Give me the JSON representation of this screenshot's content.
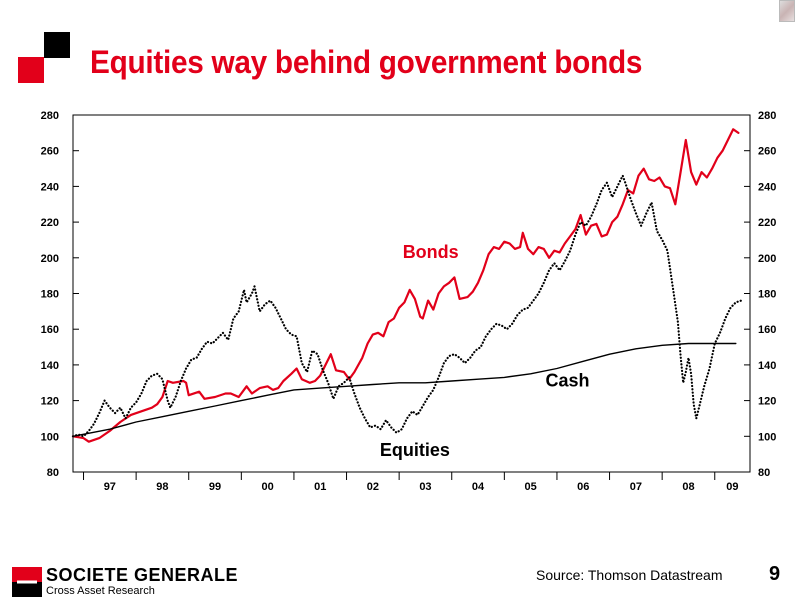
{
  "slide": {
    "title": "Equities way behind government bonds",
    "source": "Source: Thomson Datastream",
    "page_number": "9",
    "brand": {
      "name": "SOCIETE GENERALE",
      "subtitle": "Cross Asset Research"
    }
  },
  "colors": {
    "accent": "#e2001a",
    "bonds": "#e2001a",
    "equities": "#000000",
    "cash": "#000000"
  },
  "chart_data": {
    "type": "line",
    "ylim": [
      80,
      280
    ],
    "y_ticks": [
      80,
      100,
      120,
      140,
      160,
      180,
      200,
      220,
      240,
      260,
      280
    ],
    "y_tick_labels": [
      "80",
      "100",
      "120",
      "140",
      "160",
      "180",
      "200",
      "220",
      "240",
      "260",
      "280"
    ],
    "xlim": [
      1996.8,
      2009.67
    ],
    "x_ticks": [
      1997,
      1998,
      1999,
      2000,
      2001,
      2002,
      2003,
      2004,
      2005,
      2006,
      2007,
      2008,
      2009
    ],
    "x_tick_labels": [
      "97",
      "98",
      "99",
      "00",
      "01",
      "02",
      "03",
      "04",
      "05",
      "06",
      "07",
      "08",
      "09"
    ],
    "grid": false,
    "legend": "none",
    "series": [
      {
        "name": "Bonds",
        "style": "solid",
        "points": [
          [
            1996.8,
            100
          ],
          [
            1997.0,
            99
          ],
          [
            1997.1,
            97
          ],
          [
            1997.3,
            99
          ],
          [
            1997.5,
            103
          ],
          [
            1997.7,
            108
          ],
          [
            1997.9,
            112
          ],
          [
            1998.1,
            114
          ],
          [
            1998.3,
            116
          ],
          [
            1998.4,
            118
          ],
          [
            1998.5,
            122
          ],
          [
            1998.6,
            131
          ],
          [
            1998.7,
            130
          ],
          [
            1998.9,
            131
          ],
          [
            1998.95,
            130
          ],
          [
            1999.0,
            123
          ],
          [
            1999.2,
            125
          ],
          [
            1999.3,
            121
          ],
          [
            1999.5,
            122
          ],
          [
            1999.7,
            124
          ],
          [
            1999.8,
            124
          ],
          [
            1999.95,
            122
          ],
          [
            2000.1,
            128
          ],
          [
            2000.2,
            124
          ],
          [
            2000.35,
            127
          ],
          [
            2000.5,
            128
          ],
          [
            2000.6,
            126
          ],
          [
            2000.7,
            127
          ],
          [
            2000.8,
            131
          ],
          [
            2000.95,
            135
          ],
          [
            2001.05,
            138
          ],
          [
            2001.15,
            132
          ],
          [
            2001.3,
            130
          ],
          [
            2001.4,
            131
          ],
          [
            2001.5,
            134
          ],
          [
            2001.6,
            140
          ],
          [
            2001.7,
            146
          ],
          [
            2001.8,
            137
          ],
          [
            2001.95,
            136
          ],
          [
            2002.05,
            132
          ],
          [
            2002.15,
            136
          ],
          [
            2002.3,
            144
          ],
          [
            2002.4,
            152
          ],
          [
            2002.5,
            157
          ],
          [
            2002.6,
            158
          ],
          [
            2002.7,
            156
          ],
          [
            2002.8,
            164
          ],
          [
            2002.9,
            166
          ],
          [
            2003.0,
            172
          ],
          [
            2003.1,
            175
          ],
          [
            2003.2,
            182
          ],
          [
            2003.3,
            177
          ],
          [
            2003.4,
            167
          ],
          [
            2003.45,
            166
          ],
          [
            2003.55,
            176
          ],
          [
            2003.65,
            171
          ],
          [
            2003.75,
            180
          ],
          [
            2003.85,
            184
          ],
          [
            2003.95,
            186
          ],
          [
            2004.05,
            189
          ],
          [
            2004.15,
            177
          ],
          [
            2004.3,
            178
          ],
          [
            2004.4,
            181
          ],
          [
            2004.5,
            186
          ],
          [
            2004.6,
            193
          ],
          [
            2004.7,
            202
          ],
          [
            2004.8,
            206
          ],
          [
            2004.9,
            205
          ],
          [
            2005.0,
            209
          ],
          [
            2005.1,
            208
          ],
          [
            2005.2,
            205
          ],
          [
            2005.3,
            206
          ],
          [
            2005.35,
            214
          ],
          [
            2005.45,
            205
          ],
          [
            2005.55,
            202
          ],
          [
            2005.65,
            206
          ],
          [
            2005.75,
            205
          ],
          [
            2005.85,
            200
          ],
          [
            2005.95,
            204
          ],
          [
            2006.05,
            203
          ],
          [
            2006.15,
            208
          ],
          [
            2006.25,
            212
          ],
          [
            2006.35,
            216
          ],
          [
            2006.45,
            224
          ],
          [
            2006.55,
            213
          ],
          [
            2006.65,
            218
          ],
          [
            2006.75,
            219
          ],
          [
            2006.85,
            212
          ],
          [
            2006.95,
            213
          ],
          [
            2007.05,
            220
          ],
          [
            2007.15,
            223
          ],
          [
            2007.25,
            230
          ],
          [
            2007.35,
            238
          ],
          [
            2007.45,
            236
          ],
          [
            2007.55,
            246
          ],
          [
            2007.65,
            250
          ],
          [
            2007.75,
            244
          ],
          [
            2007.85,
            243
          ],
          [
            2007.95,
            245
          ],
          [
            2008.05,
            240
          ],
          [
            2008.15,
            239
          ],
          [
            2008.25,
            230
          ],
          [
            2008.35,
            248
          ],
          [
            2008.45,
            266
          ],
          [
            2008.55,
            248
          ],
          [
            2008.65,
            241
          ],
          [
            2008.75,
            248
          ],
          [
            2008.85,
            245
          ],
          [
            2008.95,
            250
          ],
          [
            2009.05,
            256
          ],
          [
            2009.15,
            260
          ],
          [
            2009.25,
            266
          ],
          [
            2009.35,
            272
          ],
          [
            2009.45,
            270
          ]
        ]
      },
      {
        "name": "Equities",
        "style": "dotted",
        "points": [
          [
            1996.8,
            100
          ],
          [
            1996.9,
            101
          ],
          [
            1997.0,
            100
          ],
          [
            1997.1,
            103
          ],
          [
            1997.2,
            107
          ],
          [
            1997.3,
            113
          ],
          [
            1997.4,
            120
          ],
          [
            1997.5,
            116
          ],
          [
            1997.6,
            113
          ],
          [
            1997.7,
            116
          ],
          [
            1997.8,
            110
          ],
          [
            1997.9,
            116
          ],
          [
            1998.0,
            119
          ],
          [
            1998.1,
            124
          ],
          [
            1998.2,
            131
          ],
          [
            1998.3,
            134
          ],
          [
            1998.4,
            135
          ],
          [
            1998.5,
            132
          ],
          [
            1998.6,
            120
          ],
          [
            1998.65,
            116
          ],
          [
            1998.75,
            122
          ],
          [
            1998.85,
            131
          ],
          [
            1998.95,
            138
          ],
          [
            1999.05,
            143
          ],
          [
            1999.15,
            144
          ],
          [
            1999.25,
            149
          ],
          [
            1999.35,
            153
          ],
          [
            1999.45,
            152
          ],
          [
            1999.55,
            155
          ],
          [
            1999.65,
            158
          ],
          [
            1999.75,
            154
          ],
          [
            1999.85,
            166
          ],
          [
            1999.95,
            170
          ],
          [
            2000.05,
            182
          ],
          [
            2000.1,
            175
          ],
          [
            2000.2,
            180
          ],
          [
            2000.25,
            184
          ],
          [
            2000.35,
            170
          ],
          [
            2000.45,
            174
          ],
          [
            2000.55,
            176
          ],
          [
            2000.65,
            172
          ],
          [
            2000.75,
            166
          ],
          [
            2000.85,
            160
          ],
          [
            2000.95,
            157
          ],
          [
            2001.05,
            156
          ],
          [
            2001.15,
            141
          ],
          [
            2001.25,
            136
          ],
          [
            2001.35,
            148
          ],
          [
            2001.45,
            146
          ],
          [
            2001.55,
            137
          ],
          [
            2001.65,
            130
          ],
          [
            2001.75,
            121
          ],
          [
            2001.85,
            128
          ],
          [
            2001.95,
            130
          ],
          [
            2002.05,
            133
          ],
          [
            2002.15,
            124
          ],
          [
            2002.25,
            116
          ],
          [
            2002.35,
            110
          ],
          [
            2002.45,
            105
          ],
          [
            2002.55,
            106
          ],
          [
            2002.65,
            104
          ],
          [
            2002.75,
            109
          ],
          [
            2002.85,
            105
          ],
          [
            2002.95,
            102
          ],
          [
            2003.05,
            104
          ],
          [
            2003.15,
            110
          ],
          [
            2003.25,
            114
          ],
          [
            2003.35,
            112
          ],
          [
            2003.45,
            117
          ],
          [
            2003.55,
            122
          ],
          [
            2003.65,
            126
          ],
          [
            2003.75,
            133
          ],
          [
            2003.85,
            141
          ],
          [
            2003.95,
            145
          ],
          [
            2004.05,
            146
          ],
          [
            2004.15,
            144
          ],
          [
            2004.25,
            141
          ],
          [
            2004.35,
            144
          ],
          [
            2004.45,
            148
          ],
          [
            2004.55,
            150
          ],
          [
            2004.65,
            156
          ],
          [
            2004.75,
            160
          ],
          [
            2004.85,
            163
          ],
          [
            2004.95,
            162
          ],
          [
            2005.05,
            160
          ],
          [
            2005.15,
            163
          ],
          [
            2005.25,
            168
          ],
          [
            2005.35,
            171
          ],
          [
            2005.45,
            172
          ],
          [
            2005.55,
            176
          ],
          [
            2005.65,
            180
          ],
          [
            2005.75,
            186
          ],
          [
            2005.85,
            193
          ],
          [
            2005.95,
            197
          ],
          [
            2006.05,
            193
          ],
          [
            2006.15,
            198
          ],
          [
            2006.25,
            204
          ],
          [
            2006.35,
            213
          ],
          [
            2006.45,
            220
          ],
          [
            2006.55,
            218
          ],
          [
            2006.65,
            223
          ],
          [
            2006.75,
            230
          ],
          [
            2006.85,
            238
          ],
          [
            2006.95,
            242
          ],
          [
            2007.05,
            234
          ],
          [
            2007.15,
            240
          ],
          [
            2007.25,
            246
          ],
          [
            2007.3,
            242
          ],
          [
            2007.4,
            233
          ],
          [
            2007.5,
            225
          ],
          [
            2007.6,
            218
          ],
          [
            2007.7,
            225
          ],
          [
            2007.8,
            231
          ],
          [
            2007.9,
            215
          ],
          [
            2008.0,
            210
          ],
          [
            2008.1,
            204
          ],
          [
            2008.2,
            184
          ],
          [
            2008.3,
            164
          ],
          [
            2008.35,
            145
          ],
          [
            2008.4,
            130
          ],
          [
            2008.45,
            136
          ],
          [
            2008.5,
            144
          ],
          [
            2008.55,
            135
          ],
          [
            2008.6,
            118
          ],
          [
            2008.65,
            110
          ],
          [
            2008.7,
            116
          ],
          [
            2008.8,
            128
          ],
          [
            2008.9,
            138
          ],
          [
            2009.0,
            152
          ],
          [
            2009.1,
            158
          ],
          [
            2009.2,
            166
          ],
          [
            2009.3,
            172
          ],
          [
            2009.4,
            175
          ],
          [
            2009.5,
            176
          ]
        ]
      },
      {
        "name": "Cash",
        "style": "solid-thin",
        "points": [
          [
            1996.8,
            100
          ],
          [
            1997.5,
            104
          ],
          [
            1998.0,
            108
          ],
          [
            1998.5,
            111
          ],
          [
            1999.0,
            114
          ],
          [
            1999.5,
            117
          ],
          [
            2000.0,
            120
          ],
          [
            2000.5,
            123
          ],
          [
            2001.0,
            126
          ],
          [
            2001.5,
            127
          ],
          [
            2002.0,
            128
          ],
          [
            2002.5,
            129
          ],
          [
            2003.0,
            130
          ],
          [
            2003.5,
            130
          ],
          [
            2004.0,
            131
          ],
          [
            2004.5,
            132
          ],
          [
            2005.0,
            133
          ],
          [
            2005.5,
            135
          ],
          [
            2006.0,
            138
          ],
          [
            2006.5,
            142
          ],
          [
            2007.0,
            146
          ],
          [
            2007.5,
            149
          ],
          [
            2008.0,
            151
          ],
          [
            2008.5,
            152
          ],
          [
            2009.0,
            152
          ],
          [
            2009.4,
            152
          ]
        ]
      }
    ],
    "annotations": [
      {
        "text": "Bonds",
        "x": 2003.6,
        "y": 200,
        "color": "#e2001a"
      },
      {
        "text": "Equities",
        "x": 2003.3,
        "y": 89,
        "color": "#000000"
      },
      {
        "text": "Cash",
        "x": 2006.2,
        "y": 128,
        "color": "#000000"
      }
    ]
  }
}
